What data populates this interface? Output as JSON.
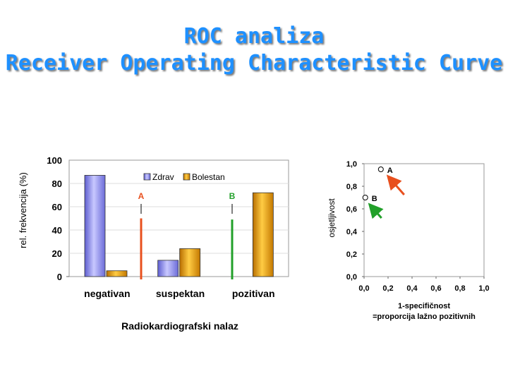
{
  "slide": {
    "title_line1": "ROC analiza",
    "title_line2": "Receiver Operating Characteristic Curve"
  },
  "chart_data": [
    {
      "type": "bar",
      "ylabel": "rel. frekvencija (%)",
      "xlabel": "Radiokardiografski nalaz",
      "ylim": [
        0,
        100
      ],
      "yticks": [
        0,
        20,
        40,
        60,
        80,
        100
      ],
      "categories": [
        "negativan",
        "suspektan",
        "pozitivan"
      ],
      "series": [
        {
          "name": "Zdrav",
          "color": "#9999ff",
          "values": [
            87,
            14,
            0
          ]
        },
        {
          "name": "Bolestan",
          "color": "#ffa500",
          "values": [
            5,
            24,
            72
          ]
        }
      ],
      "legend": "top-right",
      "annotations": [
        {
          "label": "A",
          "color": "#e8501e",
          "value": 50
        },
        {
          "label": "B",
          "color": "#22a02a",
          "value": 49
        }
      ]
    },
    {
      "type": "scatter",
      "xlabel_line1": "1-specifičnost",
      "xlabel_line2": "=proporcija lažno pozitivnih",
      "ylabel": "osjetljivost",
      "xlim": [
        0,
        1.0
      ],
      "ylim": [
        0,
        1.0
      ],
      "xticks": [
        "0,0",
        "0,2",
        "0,4",
        "0,6",
        "0,8",
        "1,0"
      ],
      "yticks": [
        "0,0",
        "0,2",
        "0,4",
        "0,6",
        "0,8",
        "1,0"
      ],
      "points": [
        {
          "label": "A",
          "x": 0.14,
          "y": 0.95,
          "arrow_color": "#e8501e"
        },
        {
          "label": "B",
          "x": 0.01,
          "y": 0.7,
          "arrow_color": "#22a02a"
        }
      ]
    }
  ]
}
